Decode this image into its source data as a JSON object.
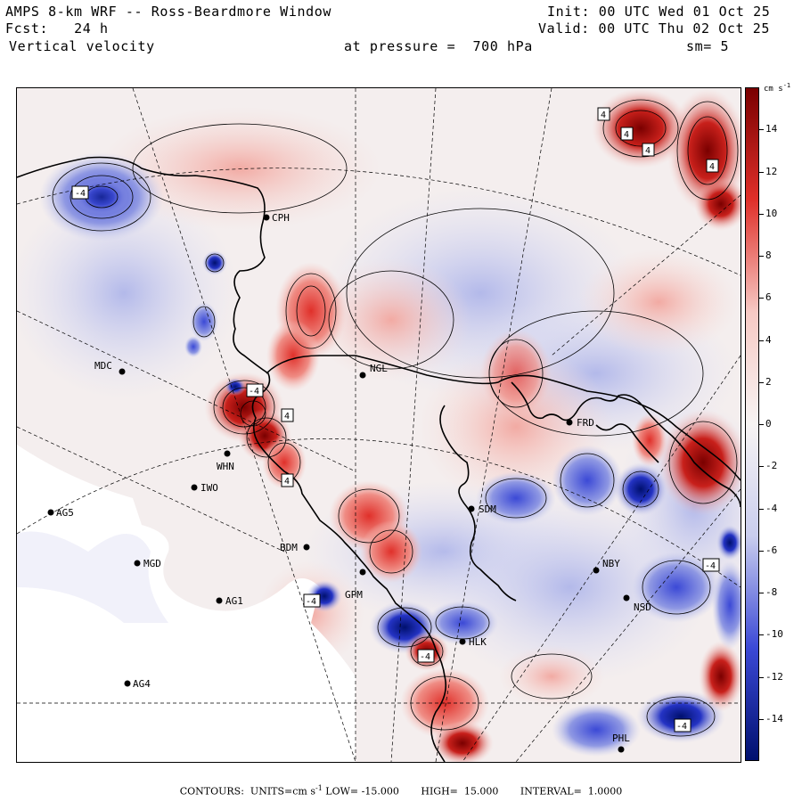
{
  "header": {
    "title": "AMPS 8-km WRF -- Ross-Beardmore Window",
    "forecast_label": "Fcst:",
    "forecast_hours": "24 h",
    "variable": "Vertical velocity",
    "init_label": "Init:",
    "init_time": "00 UTC Wed 01 Oct 25",
    "valid_label": "Valid:",
    "valid_time": "00 UTC Thu 02 Oct 25",
    "pressure_label": "at pressure =",
    "pressure_value": "700 hPa",
    "smoothing": "sm= 5"
  },
  "stations": [
    {
      "id": "CPH"
    },
    {
      "id": "MDC"
    },
    {
      "id": "NGL"
    },
    {
      "id": "WHN"
    },
    {
      "id": "IWO"
    },
    {
      "id": "AG5"
    },
    {
      "id": "MGD"
    },
    {
      "id": "AG1"
    },
    {
      "id": "AG4"
    },
    {
      "id": "BDM"
    },
    {
      "id": "SDM"
    },
    {
      "id": "FRD"
    },
    {
      "id": "NBY"
    },
    {
      "id": "NSD"
    },
    {
      "id": "HLK"
    },
    {
      "id": "PHL"
    },
    {
      "id": "GPM"
    }
  ],
  "contour_labels": [
    "-4",
    "4",
    "4",
    "4",
    "4",
    "-4",
    "4",
    "4",
    "-4",
    "-4",
    "-4",
    "-4"
  ],
  "colorbar": {
    "units": "cm s",
    "units_exp": "-1",
    "ticks": [
      "14",
      "12",
      "10",
      "8",
      "6",
      "4",
      "2",
      "0",
      "-2",
      "-4",
      "-6",
      "-8",
      "-10",
      "-12",
      "-14"
    ],
    "range": [
      -16,
      16
    ]
  },
  "footer": {
    "contours_label": "CONTOURS:",
    "units_label": "UNITS=cm s",
    "units_exp": "-1",
    "low_label": "LOW=",
    "low_value": "-15.000",
    "high_label": "HIGH=",
    "high_value": "15.000",
    "interval_label": "INTERVAL=",
    "interval_value": "1.0000"
  },
  "colors": {
    "positive_max": "#7a0000",
    "positive_mid": "#e0302a",
    "positive_low": "#f6c9c4",
    "neutral": "#f7f4f3",
    "negative_low": "#c9cdee",
    "negative_mid": "#3b49d6",
    "negative_max": "#00106e"
  }
}
